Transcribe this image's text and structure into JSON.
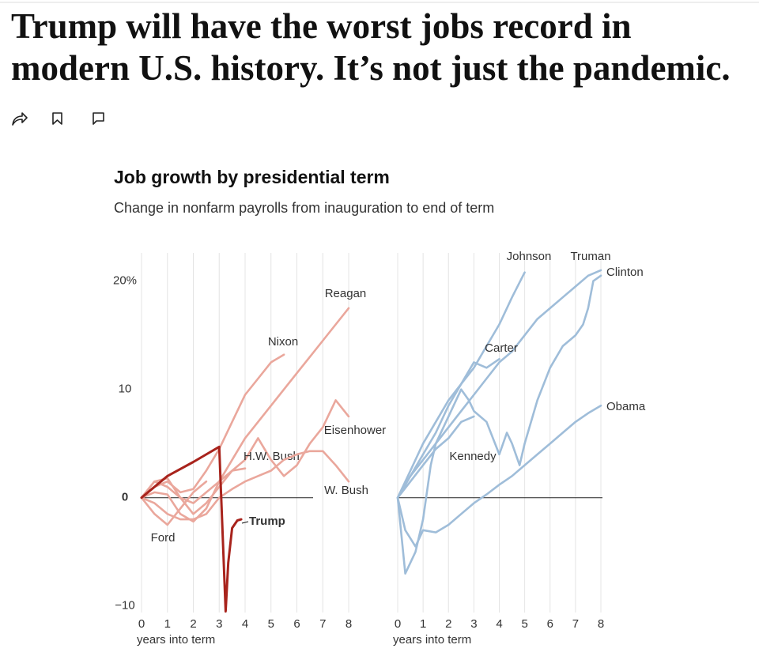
{
  "header": {
    "title_lines": [
      "Trump will have the worst jobs record in",
      "modern U.S. history. It’s not just the pandemic."
    ]
  },
  "chart_data": [
    {
      "type": "line",
      "title": "Job growth by presidential term",
      "subtitle": "Change in nonfarm payrolls from inauguration to end of term",
      "xlabel": "years into term",
      "xlim": [
        0,
        8
      ],
      "xticks": [
        0,
        1,
        2,
        3,
        4,
        5,
        6,
        7,
        8
      ],
      "ylim": [
        -10.6,
        22.6
      ],
      "yticks": [
        {
          "value": -10,
          "label": "−10"
        },
        0,
        10,
        {
          "value": 20,
          "label": "20%"
        }
      ],
      "grid": true,
      "series": [
        {
          "name": "Reagan",
          "color": "#eaa79c",
          "x": [
            0,
            0.5,
            1,
            1.5,
            2,
            2.5,
            3,
            3.5,
            4,
            4.5,
            5,
            5.5,
            6,
            6.5,
            7,
            7.5,
            8
          ],
          "values": [
            0,
            0.5,
            0.3,
            -1.5,
            -2.2,
            -1,
            1.5,
            3.5,
            5.5,
            7,
            8.5,
            10,
            11.5,
            13,
            14.5,
            16,
            17.5
          ]
        },
        {
          "name": "Nixon",
          "color": "#eaa79c",
          "x": [
            0,
            0.5,
            1,
            1.5,
            2,
            2.5,
            3,
            3.5,
            4,
            4.5,
            5,
            5.5
          ],
          "values": [
            0,
            1,
            1.5,
            0.5,
            0.8,
            2.5,
            4.5,
            7,
            9.5,
            11,
            12.5,
            13.2
          ]
        },
        {
          "name": "Eisenhower",
          "color": "#eaa79c",
          "x": [
            0,
            0.5,
            1,
            1.5,
            2,
            2.5,
            3,
            3.5,
            4,
            4.5,
            5,
            5.5,
            6,
            6.5,
            7,
            7.5,
            8
          ],
          "values": [
            0,
            1.5,
            1.8,
            0,
            -1.5,
            -0.5,
            1,
            2.5,
            3.5,
            5.5,
            3.5,
            2,
            3,
            5,
            6.5,
            9,
            7.5
          ]
        },
        {
          "name": "H.W. Bush",
          "color": "#eaa79c",
          "x": [
            0,
            0.5,
            1,
            1.5,
            2,
            2.5,
            3,
            3.5,
            4
          ],
          "values": [
            0,
            1.5,
            1,
            0,
            -0.5,
            0.5,
            1.5,
            2.5,
            2.7
          ]
        },
        {
          "name": "W. Bush",
          "color": "#eaa79c",
          "x": [
            0,
            0.5,
            1,
            1.5,
            2,
            2.5,
            3,
            3.5,
            4,
            4.5,
            5,
            5.5,
            6,
            6.5,
            7,
            7.5,
            8
          ],
          "values": [
            0,
            -0.5,
            -1.5,
            -2,
            -2,
            -1.5,
            0,
            0.8,
            1.5,
            2,
            2.5,
            3.5,
            4,
            4.3,
            4.3,
            3,
            1.5
          ]
        },
        {
          "name": "Ford",
          "color": "#eaa79c",
          "x": [
            0,
            0.5,
            1,
            1.5,
            2,
            2.5
          ],
          "values": [
            0,
            -1.5,
            -2.5,
            -1,
            0.5,
            1.5
          ]
        },
        {
          "name": "Trump",
          "color": "#a8231c",
          "bold": true,
          "x": [
            0,
            1,
            2,
            3,
            3.25,
            3.35,
            3.5,
            3.7,
            3.85
          ],
          "values": [
            0,
            2,
            3.3,
            4.7,
            -10.5,
            -6,
            -2.8,
            -2.1,
            -2
          ]
        }
      ]
    },
    {
      "type": "line",
      "xlabel": "years into term",
      "xlim": [
        0,
        8
      ],
      "xticks": [
        0,
        1,
        2,
        3,
        4,
        5,
        6,
        7,
        8
      ],
      "ylim": [
        -10.6,
        22.6
      ],
      "grid": true,
      "series": [
        {
          "name": "Johnson",
          "color": "#9fbdd9",
          "x": [
            0,
            0.5,
            1,
            1.5,
            2,
            2.5,
            3,
            3.5,
            4,
            4.5,
            5
          ],
          "values": [
            0,
            2,
            4,
            6,
            8.5,
            10.5,
            12,
            14,
            16,
            18.5,
            20.8
          ]
        },
        {
          "name": "Truman",
          "color": "#9fbdd9",
          "x": [
            0,
            0.3,
            0.7,
            1,
            1.3,
            1.5,
            2,
            2.5,
            2.8,
            3,
            3.5,
            4,
            4.3,
            4.5,
            4.8,
            5,
            5.5,
            6,
            6.5,
            7,
            7.3,
            7.5,
            7.7,
            8
          ],
          "values": [
            0,
            -7,
            -5,
            -2,
            3,
            5,
            7.5,
            10,
            9,
            8,
            7,
            4,
            6,
            5,
            3,
            5,
            9,
            12,
            14,
            15,
            16,
            17.5,
            20,
            20.5
          ]
        },
        {
          "name": "Clinton",
          "color": "#9fbdd9",
          "x": [
            0,
            0.5,
            1,
            1.5,
            2,
            2.5,
            3,
            3.5,
            4,
            4.5,
            5,
            5.5,
            6,
            6.5,
            7,
            7.5,
            8
          ],
          "values": [
            0,
            2,
            3.5,
            5,
            6.5,
            8,
            9.5,
            11,
            12.5,
            13.5,
            15,
            16.5,
            17.5,
            18.5,
            19.5,
            20.5,
            21
          ]
        },
        {
          "name": "Carter",
          "color": "#9fbdd9",
          "x": [
            0,
            0.5,
            1,
            1.5,
            2,
            2.5,
            3,
            3.5,
            4
          ],
          "values": [
            0,
            2.5,
            5,
            7,
            9,
            10.5,
            12.5,
            12,
            12.8
          ]
        },
        {
          "name": "Kennedy",
          "color": "#9fbdd9",
          "x": [
            0,
            0.5,
            1,
            1.5,
            2,
            2.5,
            3
          ],
          "values": [
            0,
            1.5,
            3,
            4.5,
            5.5,
            7,
            7.5
          ]
        },
        {
          "name": "Obama",
          "color": "#9fbdd9",
          "x": [
            0,
            0.3,
            0.7,
            1,
            1.5,
            2,
            2.5,
            3,
            3.5,
            4,
            4.5,
            5,
            5.5,
            6,
            6.5,
            7,
            7.5,
            8
          ],
          "values": [
            0,
            -3,
            -4.5,
            -3,
            -3.2,
            -2.5,
            -1.5,
            -0.5,
            0.3,
            1.2,
            2,
            3,
            4,
            5,
            6,
            7,
            7.8,
            8.5
          ]
        }
      ]
    }
  ]
}
